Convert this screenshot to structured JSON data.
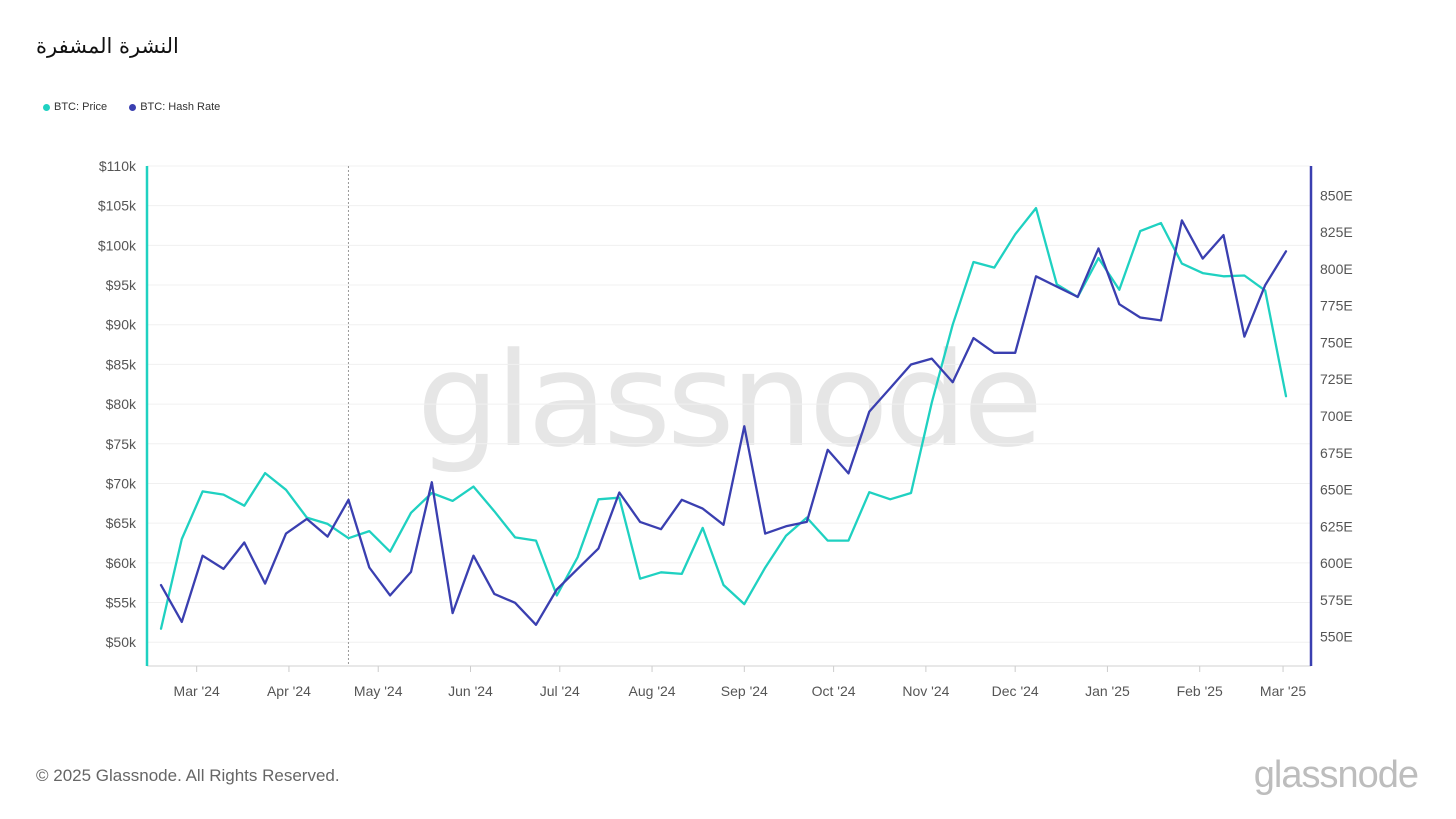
{
  "header": {
    "title": "النشرة المشفرة"
  },
  "legend": {
    "items": [
      {
        "label": "BTC: Price",
        "color": "#1fd1c1"
      },
      {
        "label": "BTC: Hash Rate",
        "color": "#3a3fb0"
      }
    ]
  },
  "watermark": "glassnode",
  "footer": {
    "copyright": "© 2025 Glassnode. All Rights Reserved.",
    "brand": "glassnode"
  },
  "chart_data": {
    "type": "line",
    "title": "",
    "grid": true,
    "x_ticks": [
      "Mar '24",
      "Apr '24",
      "May '24",
      "Jun '24",
      "Jul '24",
      "Aug '24",
      "Sep '24",
      "Oct '24",
      "Nov '24",
      "Dec '24",
      "Jan '25",
      "Feb '25",
      "Mar '25"
    ],
    "y_left": {
      "label": "",
      "ticks": [
        "$50k",
        "$55k",
        "$60k",
        "$65k",
        "$70k",
        "$75k",
        "$80k",
        "$85k",
        "$90k",
        "$95k",
        "$100k",
        "$105k",
        "$110k"
      ],
      "range": [
        47000,
        110000
      ],
      "color": "#1fd1c1"
    },
    "y_right": {
      "label": "",
      "ticks": [
        "550E",
        "575E",
        "600E",
        "625E",
        "650E",
        "675E",
        "700E",
        "725E",
        "750E",
        "775E",
        "800E",
        "825E",
        "850E"
      ],
      "range": [
        530,
        870
      ],
      "color": "#3a3fb0"
    },
    "x": [
      "2024-02-18",
      "2024-02-25",
      "2024-03-03",
      "2024-03-10",
      "2024-03-17",
      "2024-03-24",
      "2024-03-31",
      "2024-04-07",
      "2024-04-14",
      "2024-04-21",
      "2024-04-28",
      "2024-05-05",
      "2024-05-12",
      "2024-05-19",
      "2024-05-26",
      "2024-06-02",
      "2024-06-09",
      "2024-06-16",
      "2024-06-23",
      "2024-06-30",
      "2024-07-07",
      "2024-07-14",
      "2024-07-21",
      "2024-07-28",
      "2024-08-04",
      "2024-08-11",
      "2024-08-18",
      "2024-08-25",
      "2024-09-01",
      "2024-09-08",
      "2024-09-15",
      "2024-09-22",
      "2024-09-29",
      "2024-10-06",
      "2024-10-13",
      "2024-10-20",
      "2024-10-27",
      "2024-11-03",
      "2024-11-10",
      "2024-11-17",
      "2024-11-24",
      "2024-12-01",
      "2024-12-08",
      "2024-12-15",
      "2024-12-22",
      "2024-12-29",
      "2025-01-05",
      "2025-01-12",
      "2025-01-19",
      "2025-01-26",
      "2025-02-02",
      "2025-02-09",
      "2025-02-16",
      "2025-02-23",
      "2025-03-02"
    ],
    "series": [
      {
        "name": "BTC: Price",
        "axis": "left",
        "color": "#1fd1c1",
        "values": [
          51700,
          63000,
          69000,
          68600,
          67200,
          71300,
          69200,
          65700,
          64900,
          63100,
          64000,
          61400,
          66300,
          68800,
          67800,
          69600,
          66500,
          63200,
          62800,
          55900,
          60700,
          68000,
          68200,
          58000,
          58800,
          58600,
          64400,
          57200,
          54800,
          59400,
          63400,
          65700,
          62800,
          62800,
          68900,
          68000,
          68800,
          80200,
          90000,
          97900,
          97200,
          101400,
          104700,
          95100,
          93500,
          98400,
          94400,
          101800,
          102800,
          97700,
          96500,
          96100,
          96200,
          94300,
          81000
        ]
      },
      {
        "name": "BTC: Hash Rate",
        "axis": "right",
        "color": "#3a3fb0",
        "values": [
          585,
          560,
          605,
          596,
          614,
          586,
          620,
          630,
          618,
          643,
          597,
          578,
          594,
          655,
          566,
          605,
          579,
          573,
          558,
          582,
          596,
          610,
          648,
          628,
          623,
          643,
          637,
          626,
          693,
          620,
          625,
          628,
          677,
          661,
          703,
          719,
          735,
          739,
          723,
          753,
          743,
          743,
          795,
          788,
          781,
          814,
          776,
          767,
          765,
          833,
          807,
          823,
          754,
          789,
          812
        ]
      }
    ],
    "annotation": {
      "type": "vertical-dotted-line",
      "x": "2024-04-21"
    }
  }
}
